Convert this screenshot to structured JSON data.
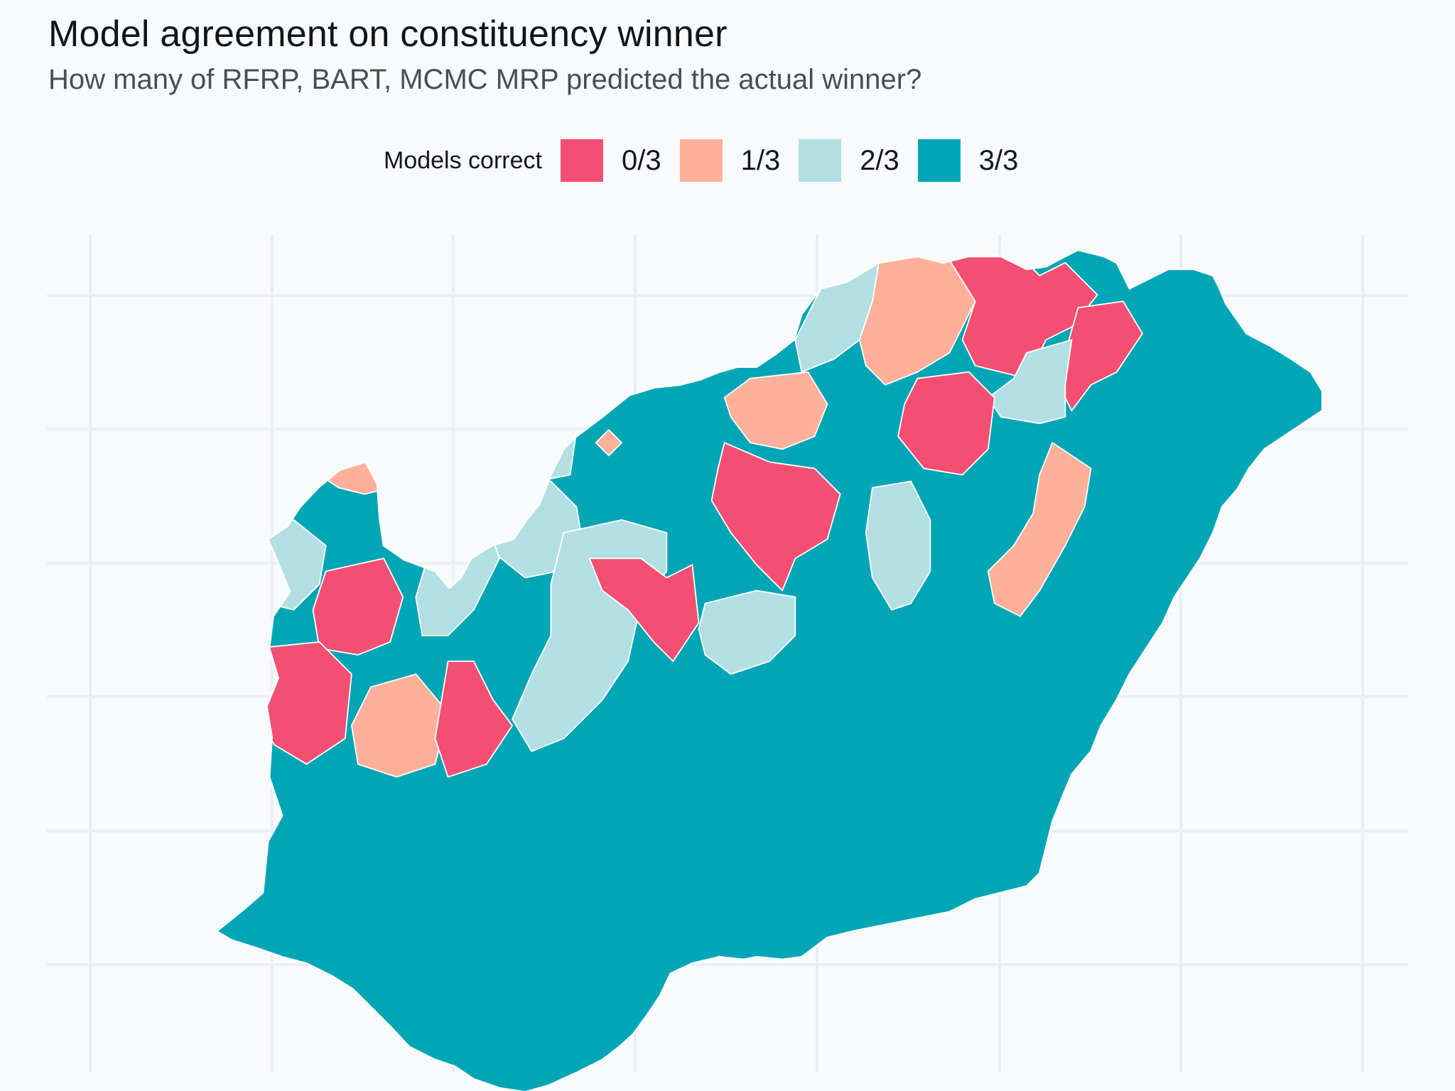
{
  "title": "Model agreement on constituency winner",
  "subtitle": "How many of RFRP, BART, MCMC MRP predicted the actual winner?",
  "legend": {
    "title": "Models correct",
    "placement": "top-center",
    "items": [
      {
        "label": "0/3",
        "color": "#f24f72"
      },
      {
        "label": "1/3",
        "color": "#ffb09a"
      },
      {
        "label": "2/3",
        "color": "#b2dfe3"
      },
      {
        "label": "3/3",
        "color": "#00a6b5"
      }
    ]
  },
  "map": {
    "region": "Hungary",
    "unit": "constituency",
    "grid": true,
    "border_color": "#ffffff"
  }
}
